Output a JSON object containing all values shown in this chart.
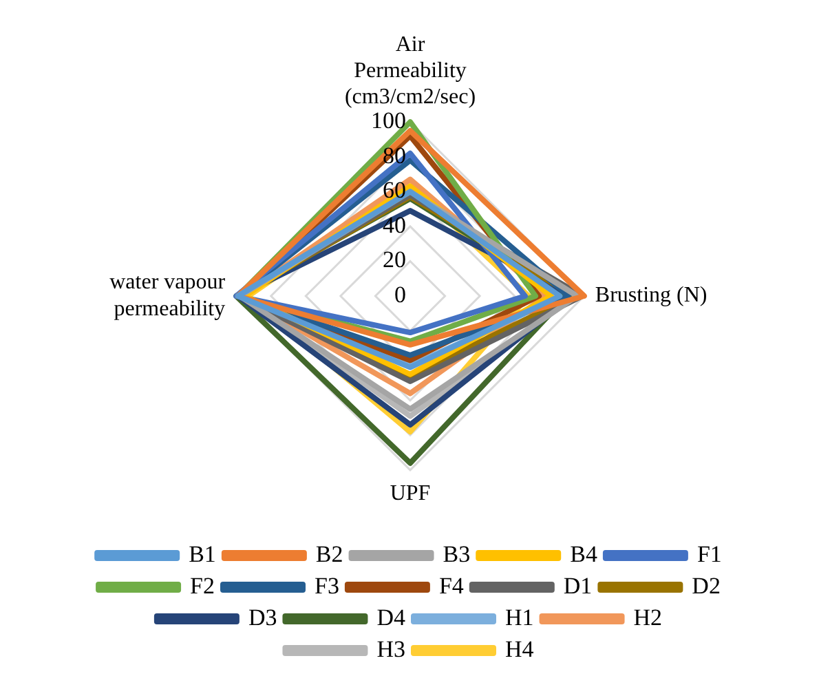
{
  "chart_data": {
    "type": "radar",
    "categories": [
      "Air Permeability (cm3/cm2/sec)",
      "Brusting (N)",
      "UPF",
      "water vapour permeability"
    ],
    "ylim": [
      0,
      100
    ],
    "yticks": [
      0,
      20,
      40,
      60,
      80,
      100
    ],
    "grid": true,
    "legend": "bottom",
    "marker": "none",
    "series": [
      {
        "name": "B1",
        "color": "#5b9bd5",
        "values": [
          60,
          86,
          41,
          99
        ]
      },
      {
        "name": "B2",
        "color": "#ed7d31",
        "values": [
          95,
          100,
          28,
          99
        ]
      },
      {
        "name": "B3",
        "color": "#a5a5a5",
        "values": [
          60,
          96,
          65,
          98
        ]
      },
      {
        "name": "B4",
        "color": "#ffc000",
        "values": [
          63,
          81,
          45,
          95
        ]
      },
      {
        "name": "F1",
        "color": "#4472c4",
        "values": [
          82,
          66,
          21,
          100
        ]
      },
      {
        "name": "F2",
        "color": "#70ad47",
        "values": [
          100,
          72,
          26,
          99
        ]
      },
      {
        "name": "F3",
        "color": "#255e91",
        "values": [
          78,
          91,
          34,
          99
        ]
      },
      {
        "name": "F4",
        "color": "#9e480e",
        "values": [
          92,
          74,
          37,
          98
        ]
      },
      {
        "name": "D1",
        "color": "#636363",
        "values": [
          58,
          99,
          49,
          99
        ]
      },
      {
        "name": "D2",
        "color": "#997300",
        "values": [
          57,
          94,
          46,
          98
        ]
      },
      {
        "name": "D3",
        "color": "#264478",
        "values": [
          49,
          93,
          74,
          99
        ]
      },
      {
        "name": "D4",
        "color": "#43682b",
        "values": [
          56,
          90,
          96,
          100
        ]
      },
      {
        "name": "H1",
        "color": "#7cafdd",
        "values": [
          59,
          88,
          40,
          98
        ]
      },
      {
        "name": "H2",
        "color": "#f1975a",
        "values": [
          67,
          78,
          56,
          97
        ]
      },
      {
        "name": "H3",
        "color": "#b7b7b7",
        "values": [
          59,
          95,
          69,
          97
        ]
      },
      {
        "name": "H4",
        "color": "#ffcd33",
        "values": [
          64,
          68,
          78,
          93
        ]
      }
    ]
  }
}
